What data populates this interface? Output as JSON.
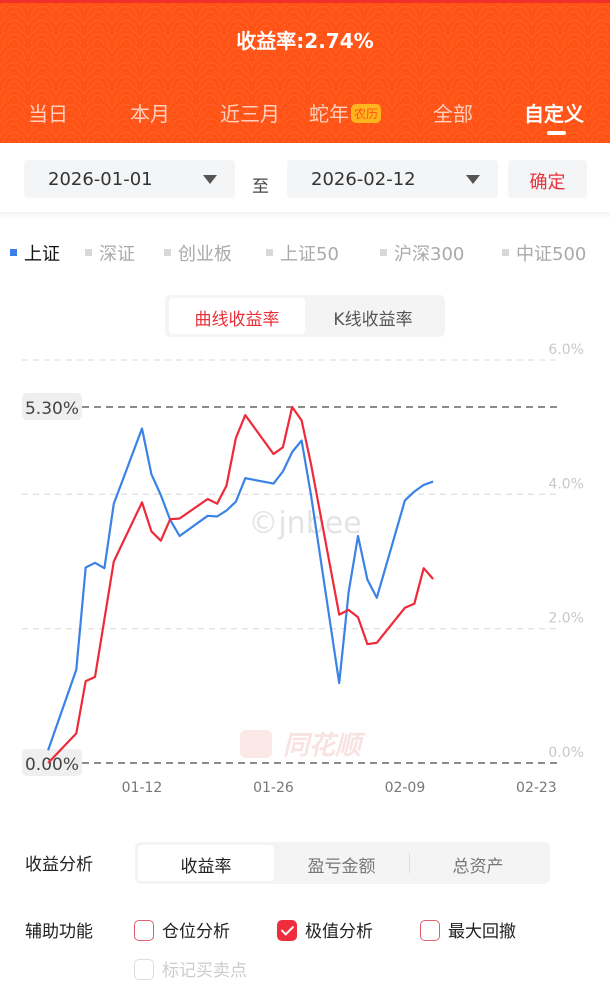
{
  "header": {
    "title": "收益率:2.74%",
    "tabs": [
      {
        "label": "当日"
      },
      {
        "label": "本月"
      },
      {
        "label": "近三月"
      },
      {
        "label": "蛇年",
        "badge": "农历"
      },
      {
        "label": "全部"
      },
      {
        "label": "自定义",
        "active": true
      }
    ],
    "accent": "#ff5316"
  },
  "date_range": {
    "start": "2026-01-01",
    "separator": "至",
    "end": "2026-02-12",
    "confirm": "确定"
  },
  "benchmarks": [
    {
      "label": "上证",
      "selected": true
    },
    {
      "label": "深证"
    },
    {
      "label": "创业板"
    },
    {
      "label": "上证50"
    },
    {
      "label": "沪深300"
    },
    {
      "label": "中证500"
    }
  ],
  "chart_toggle": [
    {
      "label": "曲线收益率",
      "active": true
    },
    {
      "label": "K线收益率"
    }
  ],
  "chart_data": {
    "type": "line",
    "x": [
      "01-02",
      "01-05",
      "01-06",
      "01-07",
      "01-08",
      "01-09",
      "01-12",
      "01-13",
      "01-14",
      "01-15",
      "01-16",
      "01-19",
      "01-20",
      "01-21",
      "01-22",
      "01-23",
      "01-26",
      "01-27",
      "01-28",
      "01-29",
      "01-30",
      "02-02",
      "02-03",
      "02-04",
      "02-05",
      "02-06",
      "02-09",
      "02-10",
      "02-11",
      "02-12"
    ],
    "series": [
      {
        "color": "#ee2a3a",
        "values": [
          0.0,
          0.44,
          1.22,
          1.28,
          2.14,
          3.0,
          3.88,
          3.45,
          3.31,
          3.63,
          3.64,
          3.93,
          3.86,
          4.13,
          4.84,
          5.18,
          4.6,
          4.7,
          5.3,
          5.1,
          4.45,
          2.21,
          2.28,
          2.17,
          1.77,
          1.79,
          2.31,
          2.37,
          2.9,
          2.74
        ]
      },
      {
        "name": "上证",
        "color": "#3b82e6",
        "values": [
          0.19,
          1.39,
          2.91,
          2.98,
          2.9,
          3.86,
          4.98,
          4.3,
          3.99,
          3.62,
          3.38,
          3.68,
          3.67,
          3.76,
          3.89,
          4.24,
          4.16,
          4.34,
          4.63,
          4.8,
          3.99,
          1.19,
          2.54,
          3.38,
          2.73,
          2.46,
          3.91,
          4.04,
          4.14,
          4.19
        ]
      }
    ],
    "xticks": [
      "01-12",
      "01-26",
      "02-09",
      "02-23"
    ],
    "yticks": [
      "0.0%",
      "2.0%",
      "4.0%",
      "6.0%"
    ],
    "ylim": [
      0,
      6
    ],
    "extremes": {
      "max": "5.30%",
      "min": "0.00%"
    },
    "watermarks": [
      "©jnbee",
      "同花顺"
    ]
  },
  "analysis": {
    "label": "收益分析",
    "options": [
      {
        "label": "收益率",
        "active": true
      },
      {
        "label": "盈亏金额"
      },
      {
        "label": "总资产"
      }
    ]
  },
  "aux": {
    "label": "辅助功能",
    "options": [
      {
        "label": "仓位分析",
        "checked": false
      },
      {
        "label": "极值分析",
        "checked": true
      },
      {
        "label": "最大回撤",
        "checked": false
      },
      {
        "label": "标记买卖点",
        "checked": false,
        "disabled": true
      }
    ]
  }
}
